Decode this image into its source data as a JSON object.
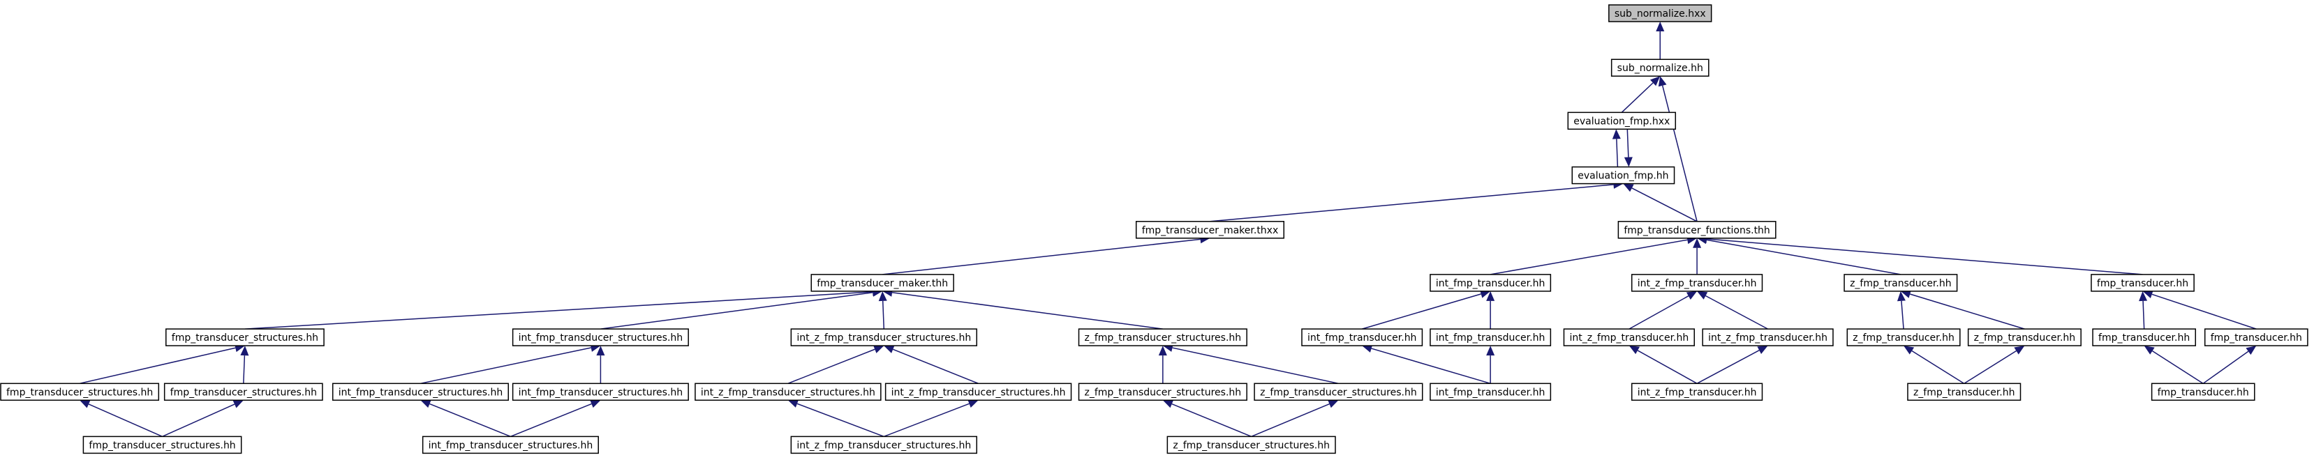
{
  "nodes": [
    {
      "label": "sub_normalize.hxx"
    },
    {
      "label": "sub_normalize.hh"
    },
    {
      "label": "evaluation_fmp.hxx"
    },
    {
      "label": "evaluation_fmp.hh"
    },
    {
      "label": "fmp_transducer_maker.thxx"
    },
    {
      "label": "fmp_transducer_functions.thh"
    },
    {
      "label": "fmp_transducer_maker.thh"
    },
    {
      "label": "int_fmp_transducer.hh"
    },
    {
      "label": "int_z_fmp_transducer.hh"
    },
    {
      "label": "z_fmp_transducer.hh"
    },
    {
      "label": "fmp_transducer.hh"
    },
    {
      "label": "fmp_transducer_structures.hh"
    },
    {
      "label": "int_fmp_transducer_structures.hh"
    },
    {
      "label": "int_z_fmp_transducer_structures.hh"
    },
    {
      "label": "z_fmp_transducer_structures.hh"
    },
    {
      "label": "int_fmp_transducer.hh"
    },
    {
      "label": "int_fmp_transducer.hh"
    },
    {
      "label": "int_z_fmp_transducer.hh"
    },
    {
      "label": "int_z_fmp_transducer.hh"
    },
    {
      "label": "z_fmp_transducer.hh"
    },
    {
      "label": "z_fmp_transducer.hh"
    },
    {
      "label": "fmp_transducer.hh"
    },
    {
      "label": "fmp_transducer.hh"
    },
    {
      "label": "fmp_transducer_structures.hh"
    },
    {
      "label": "fmp_transducer_structures.hh"
    },
    {
      "label": "int_fmp_transducer_structures.hh"
    },
    {
      "label": "int_fmp_transducer_structures.hh"
    },
    {
      "label": "int_z_fmp_transducer_structures.hh"
    },
    {
      "label": "int_z_fmp_transducer_structures.hh"
    },
    {
      "label": "z_fmp_transducer_structures.hh"
    },
    {
      "label": "z_fmp_transducer_structures.hh"
    },
    {
      "label": "int_fmp_transducer.hh"
    },
    {
      "label": "int_z_fmp_transducer.hh"
    },
    {
      "label": "z_fmp_transducer.hh"
    },
    {
      "label": "fmp_transducer.hh"
    },
    {
      "label": "fmp_transducer_structures.hh"
    },
    {
      "label": "int_fmp_transducer_structures.hh"
    },
    {
      "label": "int_z_fmp_transducer_structures.hh"
    },
    {
      "label": "z_fmp_transducer_structures.hh"
    }
  ]
}
